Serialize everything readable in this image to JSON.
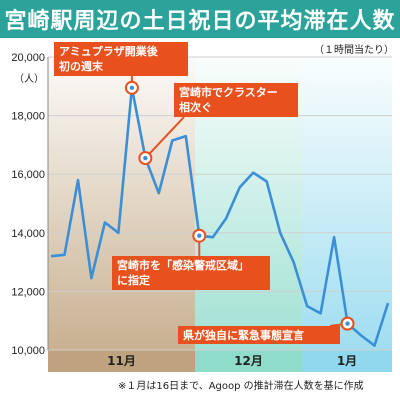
{
  "title": "宮崎駅周辺の土日祝日の平均滞在人数",
  "note": "（１時間当たり）",
  "footnote": "※１月は16日まで、Agoop の推計滞在人数を基に作成",
  "colors": {
    "title_bg": "#2ba39a",
    "line": "#3a8fd6",
    "callout": "#e8501e",
    "nov_band": "#bfa37e",
    "dec_band": "#8fdccb",
    "jan_band": "#8fd8ee"
  },
  "chart_data": {
    "type": "line",
    "title": "宮崎駅周辺の土日祝日の平均滞在人数",
    "ylabel": "（人）",
    "ylim": [
      10000,
      20000
    ],
    "yticks": [
      "10,000",
      "12,000",
      "14,000",
      "16,000",
      "18,000",
      "20,000"
    ],
    "ytick_values": [
      10000,
      12000,
      14000,
      16000,
      18000,
      20000
    ],
    "months": [
      "11月",
      "12月",
      "1月"
    ],
    "values": [
      13200,
      13250,
      15800,
      12450,
      14350,
      14000,
      18950,
      16550,
      15350,
      17150,
      17300,
      13900,
      13850,
      14500,
      15550,
      16050,
      15750,
      14000,
      13000,
      11500,
      11250,
      13850,
      10900,
      10500,
      10150,
      11600
    ],
    "annotations": [
      {
        "text": [
          "アミュプラザ開業後",
          "初の週末"
        ],
        "point_index": 6
      },
      {
        "text": [
          "宮崎市でクラスター",
          "相次ぐ"
        ],
        "point_index": 7
      },
      {
        "text": [
          "宮崎市を「感染警戒区域」",
          "に指定"
        ],
        "point_index": 11
      },
      {
        "text": [
          "県が独自に緊急事態宣言"
        ],
        "point_index": 22
      }
    ]
  }
}
